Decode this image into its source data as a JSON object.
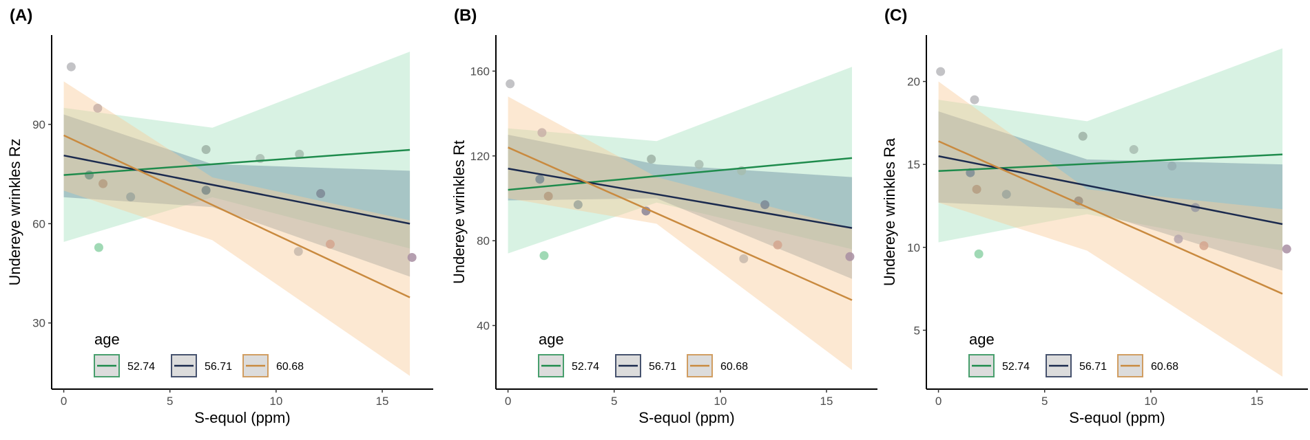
{
  "legend": {
    "title": "age",
    "entries": [
      {
        "label": "52.74",
        "line": "#1e8b4c",
        "fill": "#a9e2c0"
      },
      {
        "label": "56.71",
        "line": "#1b2a4e",
        "fill": "#5f8299"
      },
      {
        "label": "60.68",
        "line": "#c98a3f",
        "fill": "#f8cc9c"
      }
    ]
  },
  "chart_data": [
    {
      "type": "scatter",
      "panel_label": "(A)",
      "xlabel": "S-equol (ppm)",
      "ylabel": "Undereye wrinkles Rz",
      "xlim": [
        -0.57,
        17.4
      ],
      "ylim": [
        10,
        117
      ],
      "xticks": [
        0,
        5,
        10,
        15
      ],
      "yticks": [
        30,
        60,
        90
      ],
      "points": [
        {
          "x": 0.35,
          "y": 107.4,
          "color": "#b8b8bc"
        },
        {
          "x": 1.6,
          "y": 94.9,
          "color": "#c8b0a8"
        },
        {
          "x": 1.2,
          "y": 74.7,
          "color": "#7a9686"
        },
        {
          "x": 1.85,
          "y": 72.1,
          "color": "#b59c80"
        },
        {
          "x": 3.15,
          "y": 68.1,
          "color": "#9ea69c"
        },
        {
          "x": 1.65,
          "y": 52.8,
          "color": "#8fd2a8"
        },
        {
          "x": 6.7,
          "y": 82.4,
          "color": "#9fb3a6"
        },
        {
          "x": 6.7,
          "y": 70.1,
          "color": "#7f8c88"
        },
        {
          "x": 9.25,
          "y": 79.7,
          "color": "#a9bdb1"
        },
        {
          "x": 11.1,
          "y": 81.0,
          "color": "#a6bcae"
        },
        {
          "x": 12.1,
          "y": 69.1,
          "color": "#7d8794"
        },
        {
          "x": 11.05,
          "y": 51.6,
          "color": "#c7b8ad"
        },
        {
          "x": 12.55,
          "y": 53.8,
          "color": "#d3a58e"
        },
        {
          "x": 16.4,
          "y": 49.8,
          "color": "#a88ea2"
        }
      ],
      "series": [
        {
          "name": "52.74",
          "line": [
            [
              0,
              74.7
            ],
            [
              16.3,
              82.3
            ]
          ],
          "band": [
            [
              0,
              54.5,
              95
            ],
            [
              7,
              68,
              89
            ],
            [
              16.3,
              52.5,
              112
            ]
          ]
        },
        {
          "name": "56.71",
          "line": [
            [
              0,
              80.6
            ],
            [
              16.3,
              60
            ]
          ],
          "band": [
            [
              0,
              68,
              93
            ],
            [
              7,
              65,
              78
            ],
            [
              16.3,
              44,
              76
            ]
          ]
        },
        {
          "name": "60.68",
          "line": [
            [
              0,
              86.7
            ],
            [
              16.3,
              37.7
            ]
          ],
          "band": [
            [
              0,
              70,
              103
            ],
            [
              7,
              55,
              74
            ],
            [
              16.3,
              14,
              61
            ]
          ]
        }
      ]
    },
    {
      "type": "scatter",
      "panel_label": "(B)",
      "xlabel": "S-equol (ppm)",
      "ylabel": "Undereye wrinkles Rt",
      "xlim": [
        -0.57,
        17.4
      ],
      "ylim": [
        10,
        177
      ],
      "xticks": [
        0,
        5,
        10,
        15
      ],
      "yticks": [
        40,
        80,
        120,
        160
      ],
      "points": [
        {
          "x": 0.1,
          "y": 154,
          "color": "#b8b8bc"
        },
        {
          "x": 1.6,
          "y": 131,
          "color": "#c8b0a8"
        },
        {
          "x": 1.5,
          "y": 109,
          "color": "#7d8c94"
        },
        {
          "x": 1.9,
          "y": 101,
          "color": "#b59c80"
        },
        {
          "x": 3.3,
          "y": 97,
          "color": "#9ea69c"
        },
        {
          "x": 1.7,
          "y": 73,
          "color": "#8fd2a8"
        },
        {
          "x": 6.75,
          "y": 118.5,
          "color": "#9fb3a6"
        },
        {
          "x": 6.5,
          "y": 94,
          "color": "#8a8496"
        },
        {
          "x": 9.0,
          "y": 116,
          "color": "#a9bdb1"
        },
        {
          "x": 11.0,
          "y": 113,
          "color": "#a6bcae"
        },
        {
          "x": 12.1,
          "y": 97,
          "color": "#7d8794"
        },
        {
          "x": 11.1,
          "y": 71.5,
          "color": "#c7b8ad"
        },
        {
          "x": 12.7,
          "y": 78,
          "color": "#d3a58e"
        },
        {
          "x": 16.1,
          "y": 72.5,
          "color": "#a88ea2"
        }
      ],
      "series": [
        {
          "name": "52.74",
          "line": [
            [
              0,
              104
            ],
            [
              16.2,
              119
            ]
          ],
          "band": [
            [
              0,
              74,
              133
            ],
            [
              7,
              98,
              127
            ],
            [
              16.2,
              76,
              162
            ]
          ]
        },
        {
          "name": "56.71",
          "line": [
            [
              0,
              114
            ],
            [
              16.2,
              86
            ]
          ],
          "band": [
            [
              0,
              99,
              130
            ],
            [
              7,
              100,
              116
            ],
            [
              16.2,
              62,
              110
            ]
          ]
        },
        {
          "name": "60.68",
          "line": [
            [
              0,
              124
            ],
            [
              16.2,
              52
            ]
          ],
          "band": [
            [
              0,
              100,
              148
            ],
            [
              7,
              88,
              110
            ],
            [
              16.2,
              19,
              86
            ]
          ]
        }
      ]
    },
    {
      "type": "scatter",
      "panel_label": "(C)",
      "xlabel": "S-equol (ppm)",
      "ylabel": "Undereye wrinkles Ra",
      "xlim": [
        -0.57,
        17.4
      ],
      "ylim": [
        1.45,
        22.8
      ],
      "xticks": [
        0,
        5,
        10,
        15
      ],
      "yticks": [
        5,
        10,
        15,
        20
      ],
      "points": [
        {
          "x": 0.1,
          "y": 20.6,
          "color": "#b8b8bc"
        },
        {
          "x": 1.7,
          "y": 18.9,
          "color": "#b8b8bc"
        },
        {
          "x": 1.5,
          "y": 14.5,
          "color": "#7d8c94"
        },
        {
          "x": 1.8,
          "y": 13.5,
          "color": "#b59c80"
        },
        {
          "x": 3.2,
          "y": 13.2,
          "color": "#9ea69c"
        },
        {
          "x": 1.9,
          "y": 9.6,
          "color": "#8fd2a8"
        },
        {
          "x": 6.8,
          "y": 16.7,
          "color": "#9fb3a6"
        },
        {
          "x": 6.6,
          "y": 12.8,
          "color": "#9e9080"
        },
        {
          "x": 9.2,
          "y": 15.9,
          "color": "#a9bdb1"
        },
        {
          "x": 11.0,
          "y": 14.9,
          "color": "#96aeb2"
        },
        {
          "x": 12.1,
          "y": 12.4,
          "color": "#9a9aa2"
        },
        {
          "x": 11.3,
          "y": 10.5,
          "color": "#b5a4ad"
        },
        {
          "x": 12.5,
          "y": 10.1,
          "color": "#d3a58e"
        },
        {
          "x": 16.4,
          "y": 9.9,
          "color": "#a88ea2"
        }
      ],
      "series": [
        {
          "name": "52.74",
          "line": [
            [
              0,
              14.6
            ],
            [
              16.2,
              15.6
            ]
          ],
          "band": [
            [
              0,
              10.3,
              18.9
            ],
            [
              7,
              12,
              17.6
            ],
            [
              16.2,
              9.8,
              22
            ]
          ]
        },
        {
          "name": "56.71",
          "line": [
            [
              0,
              15.5
            ],
            [
              16.2,
              11.4
            ]
          ],
          "band": [
            [
              0,
              12.7,
              18.2
            ],
            [
              7,
              12.3,
              15.3
            ],
            [
              16.2,
              8.6,
              15
            ]
          ]
        },
        {
          "name": "60.68",
          "line": [
            [
              0,
              16.4
            ],
            [
              16.2,
              7.2
            ]
          ],
          "band": [
            [
              0,
              12.7,
              20
            ],
            [
              7,
              9.8,
              13.5
            ],
            [
              16.2,
              2.2,
              12.3
            ]
          ]
        }
      ]
    }
  ]
}
